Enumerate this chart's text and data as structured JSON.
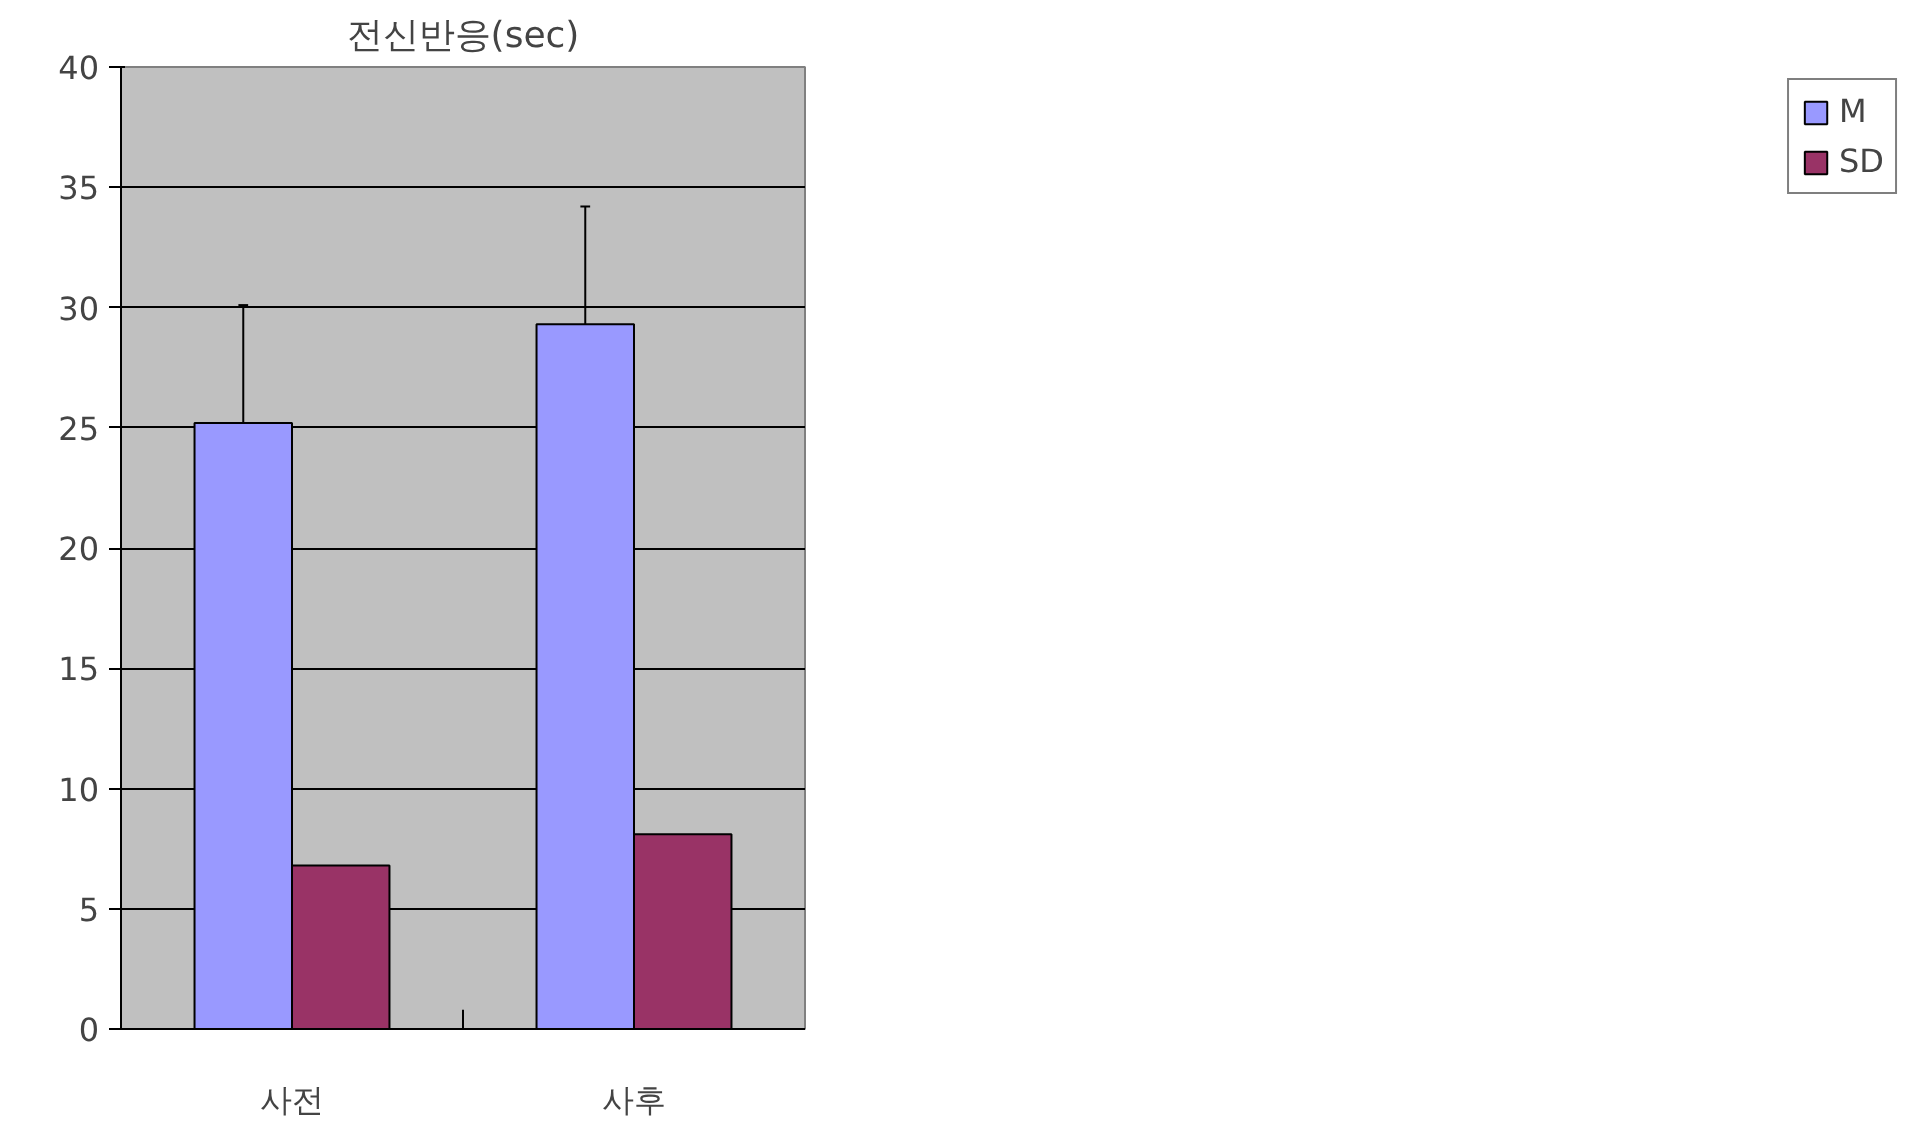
{
  "chart_data": {
    "type": "bar",
    "title": "전신반응(sec)",
    "categories": [
      "사전",
      "사후"
    ],
    "series": [
      {
        "name": "M",
        "color": "#9999ff",
        "values": [
          25.2,
          29.3
        ],
        "errors": [
          [
            25.2,
            30.1
          ],
          [
            29.3,
            34.2
          ]
        ]
      },
      {
        "name": "SD",
        "color": "#993366",
        "values": [
          6.8,
          8.1
        ]
      }
    ],
    "ylim": [
      0,
      40
    ],
    "yticks": [
      0,
      5,
      10,
      15,
      20,
      25,
      30,
      35,
      40
    ],
    "grid": "y",
    "legend": "right"
  }
}
